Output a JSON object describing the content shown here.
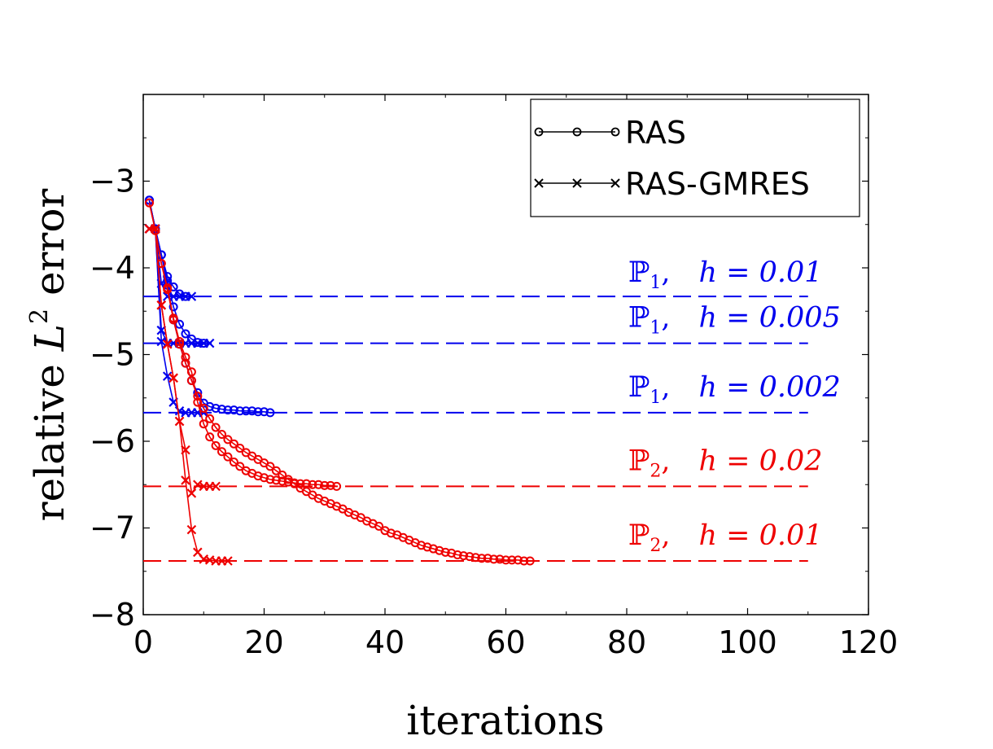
{
  "chart_data": {
    "type": "line",
    "title": "",
    "xlabel": "iterations",
    "ylabel_prefix": "relative ",
    "ylabel_var": "L",
    "ylabel_sup": "2",
    "ylabel_suffix": " error",
    "xlim": [
      0,
      120
    ],
    "ylim": [
      -8,
      -2
    ],
    "xticks": [
      0,
      20,
      40,
      60,
      80,
      100,
      120
    ],
    "xtick_labels": [
      "0",
      "20",
      "40",
      "60",
      "80",
      "100",
      "120"
    ],
    "yticks": [
      -8,
      -7,
      -6,
      -5,
      -4,
      -3
    ],
    "ytick_labels": [
      "−8",
      "−7",
      "−6",
      "−5",
      "−4",
      "−3"
    ],
    "grid": false,
    "legend": {
      "placement": "top-right",
      "entries": [
        {
          "label": "RAS",
          "marker": "circle"
        },
        {
          "label": "RAS-GMRES",
          "marker": "x"
        }
      ]
    },
    "reference_lines": [
      {
        "space": "ℙ",
        "sub": "1",
        "h": "h = 0.01",
        "value": -4.33,
        "color": "#0000ee",
        "x_range": [
          0,
          110
        ]
      },
      {
        "space": "ℙ",
        "sub": "1",
        "h": "h = 0.005",
        "value": -4.87,
        "color": "#0000ee",
        "x_range": [
          0,
          110
        ]
      },
      {
        "space": "ℙ",
        "sub": "1",
        "h": "h = 0.002",
        "value": -5.67,
        "color": "#0000ee",
        "x_range": [
          0,
          110
        ]
      },
      {
        "space": "ℙ",
        "sub": "2",
        "h": "h = 0.02",
        "value": -6.52,
        "color": "#ee0000",
        "x_range": [
          0,
          110
        ]
      },
      {
        "space": "ℙ",
        "sub": "2",
        "h": "h = 0.01",
        "value": -7.38,
        "color": "#ee0000",
        "x_range": [
          0,
          110
        ]
      }
    ],
    "series": [
      {
        "name": "RAS P1 h=0.01",
        "method": "RAS",
        "marker": "circle",
        "color": "#0000ee",
        "x": [
          1,
          2,
          3,
          4,
          5,
          6,
          7
        ],
        "y": [
          -3.22,
          -3.55,
          -3.85,
          -4.1,
          -4.22,
          -4.3,
          -4.33
        ]
      },
      {
        "name": "RAS-GMRES P1 h=0.01",
        "method": "RAS-GMRES",
        "marker": "x",
        "color": "#0000ee",
        "x": [
          1,
          2,
          3,
          4,
          5,
          6,
          7,
          8
        ],
        "y": [
          -3.55,
          -3.55,
          -4.18,
          -4.33,
          -4.33,
          -4.33,
          -4.33,
          -4.33
        ]
      },
      {
        "name": "RAS P1 h=0.005",
        "method": "RAS",
        "marker": "circle",
        "color": "#0000ee",
        "x": [
          1,
          2,
          3,
          4,
          5,
          6,
          7,
          8,
          9,
          10
        ],
        "y": [
          -3.22,
          -3.55,
          -3.85,
          -4.15,
          -4.45,
          -4.65,
          -4.76,
          -4.82,
          -4.86,
          -4.87
        ]
      },
      {
        "name": "RAS-GMRES P1 h=0.005",
        "method": "RAS-GMRES",
        "marker": "x",
        "color": "#0000ee",
        "x": [
          1,
          2,
          3,
          4,
          5,
          6,
          7,
          8,
          9,
          10,
          11
        ],
        "y": [
          -3.55,
          -3.55,
          -4.72,
          -4.87,
          -4.87,
          -4.87,
          -4.87,
          -4.87,
          -4.87,
          -4.87,
          -4.87
        ]
      },
      {
        "name": "RAS P1 h=0.002",
        "method": "RAS",
        "marker": "circle",
        "color": "#0000ee",
        "x": [
          1,
          2,
          3,
          4,
          5,
          6,
          7,
          8,
          9,
          10,
          11,
          12,
          13,
          14,
          15,
          16,
          17,
          18,
          19,
          20,
          21
        ],
        "y": [
          -3.22,
          -3.55,
          -3.85,
          -4.2,
          -4.6,
          -4.88,
          -5.1,
          -5.3,
          -5.44,
          -5.56,
          -5.6,
          -5.62,
          -5.63,
          -5.64,
          -5.64,
          -5.65,
          -5.65,
          -5.65,
          -5.66,
          -5.66,
          -5.67
        ]
      },
      {
        "name": "RAS-GMRES P1 h=0.002",
        "method": "RAS-GMRES",
        "marker": "x",
        "color": "#0000ee",
        "x": [
          1,
          2,
          3,
          4,
          5,
          6,
          7,
          8,
          9,
          10
        ],
        "y": [
          -3.55,
          -3.55,
          -4.85,
          -5.25,
          -5.55,
          -5.65,
          -5.67,
          -5.67,
          -5.67,
          -5.67
        ]
      },
      {
        "name": "RAS P2 h=0.02",
        "method": "RAS",
        "marker": "circle",
        "color": "#ee0000",
        "x": [
          1,
          2,
          3,
          4,
          5,
          6,
          7,
          8,
          9,
          10,
          11,
          12,
          13,
          14,
          15,
          16,
          17,
          18,
          19,
          20,
          21,
          22,
          23,
          24,
          25,
          26,
          27,
          28,
          29,
          30,
          31,
          32
        ],
        "y": [
          -3.25,
          -3.57,
          -3.95,
          -4.23,
          -4.58,
          -4.85,
          -5.03,
          -5.2,
          -5.55,
          -5.8,
          -5.95,
          -6.05,
          -6.12,
          -6.18,
          -6.24,
          -6.29,
          -6.34,
          -6.37,
          -6.4,
          -6.42,
          -6.44,
          -6.45,
          -6.46,
          -6.47,
          -6.48,
          -6.49,
          -6.49,
          -6.5,
          -6.5,
          -6.51,
          -6.51,
          -6.52
        ]
      },
      {
        "name": "RAS-GMRES P2 h=0.02",
        "method": "RAS-GMRES",
        "marker": "x",
        "color": "#ee0000",
        "x": [
          1,
          2,
          3,
          4,
          5,
          6,
          7,
          8,
          9,
          10,
          11,
          12
        ],
        "y": [
          -3.55,
          -3.55,
          -4.43,
          -4.88,
          -5.27,
          -5.77,
          -6.1,
          -6.6,
          -6.5,
          -6.52,
          -6.52,
          -6.52
        ]
      },
      {
        "name": "RAS P2 h=0.01",
        "method": "RAS",
        "marker": "circle",
        "color": "#ee0000",
        "x": [
          1,
          2,
          3,
          4,
          5,
          6,
          7,
          8,
          9,
          10,
          11,
          12,
          13,
          14,
          15,
          16,
          17,
          18,
          19,
          20,
          21,
          22,
          23,
          24,
          25,
          26,
          27,
          28,
          29,
          30,
          31,
          32,
          33,
          34,
          35,
          36,
          37,
          38,
          39,
          40,
          41,
          42,
          43,
          44,
          45,
          46,
          47,
          48,
          49,
          50,
          51,
          52,
          53,
          54,
          55,
          56,
          57,
          58,
          59,
          60,
          61,
          62,
          63,
          64
        ],
        "y": [
          -3.25,
          -3.57,
          -3.95,
          -4.25,
          -4.6,
          -4.88,
          -5.1,
          -5.3,
          -5.48,
          -5.62,
          -5.74,
          -5.84,
          -5.92,
          -5.98,
          -6.03,
          -6.08,
          -6.13,
          -6.17,
          -6.21,
          -6.25,
          -6.29,
          -6.34,
          -6.39,
          -6.44,
          -6.49,
          -6.54,
          -6.58,
          -6.62,
          -6.66,
          -6.69,
          -6.72,
          -6.75,
          -6.78,
          -6.82,
          -6.85,
          -6.88,
          -6.92,
          -6.95,
          -6.98,
          -7.03,
          -7.06,
          -7.08,
          -7.11,
          -7.14,
          -7.17,
          -7.2,
          -7.22,
          -7.24,
          -7.26,
          -7.28,
          -7.29,
          -7.31,
          -7.32,
          -7.33,
          -7.34,
          -7.35,
          -7.35,
          -7.36,
          -7.36,
          -7.37,
          -7.37,
          -7.37,
          -7.38,
          -7.38
        ]
      },
      {
        "name": "RAS-GMRES P2 h=0.01",
        "method": "RAS-GMRES",
        "marker": "x",
        "color": "#ee0000",
        "x": [
          1,
          2,
          3,
          4,
          5,
          6,
          7,
          8,
          9,
          10,
          11,
          12,
          13,
          14
        ],
        "y": [
          -3.55,
          -3.55,
          -4.43,
          -4.88,
          -5.27,
          -5.77,
          -6.45,
          -7.02,
          -7.28,
          -7.36,
          -7.37,
          -7.38,
          -7.38,
          -7.38
        ]
      }
    ]
  }
}
